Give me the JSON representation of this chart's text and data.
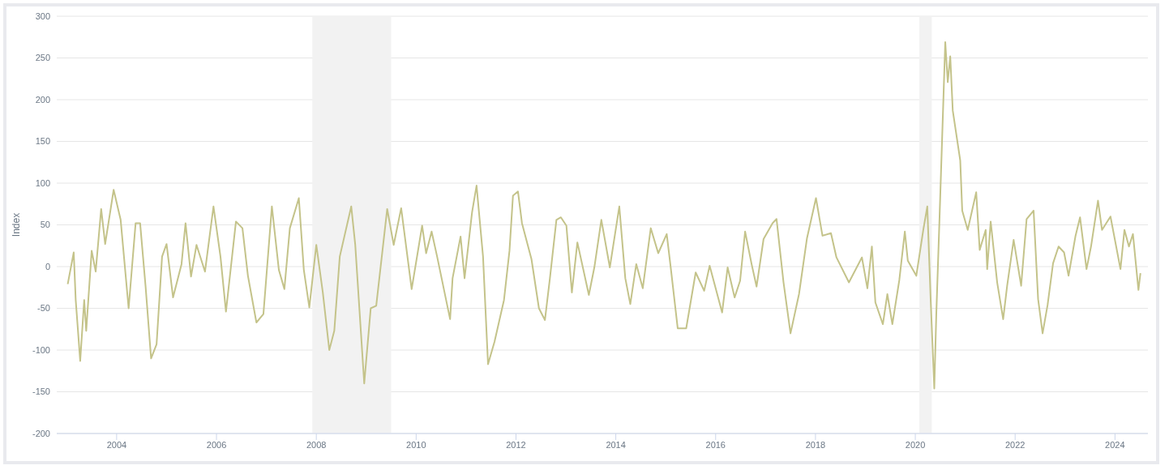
{
  "chart_data": {
    "type": "line",
    "ylabel": "Index",
    "color": "#c4c38a",
    "x": [
      2003.02,
      2003.14,
      2003.18,
      2003.27,
      2003.35,
      2003.39,
      2003.5,
      2003.58,
      2003.69,
      2003.77,
      2003.94,
      2004.08,
      2004.24,
      2004.38,
      2004.47,
      2004.58,
      2004.69,
      2004.8,
      2004.91,
      2005.0,
      2005.13,
      2005.3,
      2005.38,
      2005.49,
      2005.6,
      2005.77,
      2005.94,
      2006.08,
      2006.19,
      2006.39,
      2006.52,
      2006.63,
      2006.8,
      2006.94,
      2007.11,
      2007.25,
      2007.36,
      2007.47,
      2007.65,
      2007.75,
      2007.86,
      2008.0,
      2008.13,
      2008.26,
      2008.36,
      2008.47,
      2008.7,
      2008.78,
      2008.96,
      2009.09,
      2009.2,
      2009.42,
      2009.55,
      2009.7,
      2009.91,
      2010.12,
      2010.2,
      2010.31,
      2010.42,
      2010.68,
      2010.73,
      2010.89,
      2010.97,
      2011.12,
      2011.21,
      2011.34,
      2011.44,
      2011.57,
      2011.76,
      2011.87,
      2011.94,
      2012.04,
      2012.12,
      2012.31,
      2012.46,
      2012.58,
      2012.68,
      2012.81,
      2012.9,
      2013.01,
      2013.12,
      2013.23,
      2013.46,
      2013.57,
      2013.71,
      2013.88,
      2014.07,
      2014.19,
      2014.29,
      2014.41,
      2014.54,
      2014.7,
      2014.85,
      2015.02,
      2015.1,
      2015.24,
      2015.41,
      2015.6,
      2015.77,
      2015.88,
      2016.13,
      2016.24,
      2016.38,
      2016.49,
      2016.59,
      2016.72,
      2016.82,
      2016.96,
      2017.14,
      2017.22,
      2017.36,
      2017.5,
      2017.67,
      2017.83,
      2018.01,
      2018.14,
      2018.31,
      2018.42,
      2018.67,
      2018.93,
      2019.04,
      2019.13,
      2019.2,
      2019.35,
      2019.44,
      2019.54,
      2019.68,
      2019.79,
      2019.85,
      2020.02,
      2020.16,
      2020.24,
      2020.31,
      2020.38,
      2020.42,
      2020.49,
      2020.6,
      2020.65,
      2020.7,
      2020.75,
      2020.9,
      2020.94,
      2021.05,
      2021.22,
      2021.29,
      2021.41,
      2021.44,
      2021.51,
      2021.64,
      2021.76,
      2021.84,
      2021.97,
      2022.12,
      2022.23,
      2022.37,
      2022.46,
      2022.55,
      2022.65,
      2022.76,
      2022.87,
      2022.98,
      2023.07,
      2023.21,
      2023.3,
      2023.43,
      2023.52,
      2023.66,
      2023.74,
      2023.91,
      2024.11,
      2024.19,
      2024.28,
      2024.36,
      2024.47,
      2024.51
    ],
    "values": [
      -21,
      17,
      -40,
      -113,
      -40,
      -77,
      19,
      -6,
      69,
      27,
      92,
      56,
      -50,
      52,
      52,
      -24,
      -110,
      -93,
      12,
      27,
      -37,
      3,
      52,
      -12,
      26,
      -6,
      72,
      12,
      -54,
      54,
      46,
      -11,
      -67,
      -57,
      72,
      -4,
      -27,
      46,
      82,
      -4,
      -49,
      26,
      -31,
      -100,
      -77,
      12,
      72,
      26,
      -140,
      -50,
      -47,
      69,
      26,
      70,
      -27,
      49,
      16,
      42,
      12,
      -63,
      -14,
      36,
      -14,
      65,
      97,
      12,
      -117,
      -90,
      -40,
      19,
      85,
      90,
      52,
      9,
      -50,
      -64,
      -14,
      56,
      59,
      49,
      -31,
      29,
      -34,
      -1,
      56,
      -1,
      72,
      -14,
      -45,
      3,
      -26,
      46,
      16,
      39,
      -1,
      -74,
      -74,
      -7,
      -29,
      1,
      -55,
      -1,
      -37,
      -17,
      42,
      3,
      -24,
      33,
      52,
      57,
      -19,
      -80,
      -33,
      34,
      82,
      37,
      40,
      11,
      -19,
      11,
      -26,
      24,
      -43,
      -69,
      -33,
      -69,
      -16,
      42,
      7,
      -11,
      44,
      72,
      -43,
      -146,
      -58,
      67,
      269,
      221,
      252,
      187,
      127,
      67,
      44,
      89,
      20,
      44,
      -3,
      54,
      -19,
      -63,
      -23,
      32,
      -23,
      57,
      67,
      -39,
      -80,
      -46,
      4,
      24,
      17,
      -11,
      37,
      59,
      -3,
      24,
      79,
      44,
      60,
      -3,
      44,
      24,
      39,
      -28,
      -8
    ],
    "xlim": [
      2002.8,
      2024.66
    ],
    "xticks": [
      2004,
      2006,
      2008,
      2010,
      2012,
      2014,
      2016,
      2018,
      2020,
      2022,
      2024
    ],
    "ylim": [
      -200,
      300
    ],
    "yticks": [
      -200,
      -150,
      -100,
      -50,
      0,
      50,
      100,
      150,
      200,
      250,
      300
    ],
    "grid": "y",
    "bands": [
      {
        "axis": "x",
        "from": 2007.92,
        "to": 2009.5,
        "color": "#f2f2f2"
      },
      {
        "axis": "x",
        "from": 2020.08,
        "to": 2020.33,
        "color": "#f2f2f2"
      }
    ]
  }
}
